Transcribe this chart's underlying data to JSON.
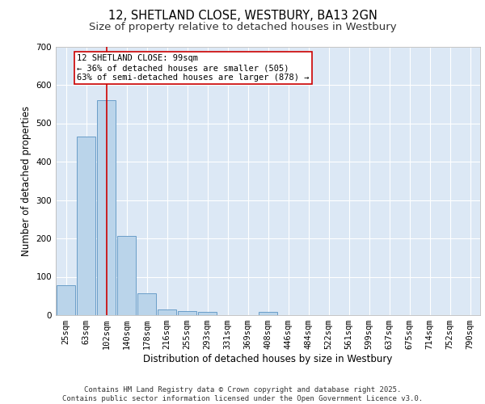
{
  "title": "12, SHETLAND CLOSE, WESTBURY, BA13 2GN",
  "subtitle": "Size of property relative to detached houses in Westbury",
  "xlabel": "Distribution of detached houses by size in Westbury",
  "ylabel": "Number of detached properties",
  "categories": [
    "25sqm",
    "63sqm",
    "102sqm",
    "140sqm",
    "178sqm",
    "216sqm",
    "255sqm",
    "293sqm",
    "331sqm",
    "369sqm",
    "408sqm",
    "446sqm",
    "484sqm",
    "522sqm",
    "561sqm",
    "599sqm",
    "637sqm",
    "675sqm",
    "714sqm",
    "752sqm",
    "790sqm"
  ],
  "values": [
    78,
    465,
    560,
    207,
    57,
    14,
    10,
    9,
    0,
    0,
    8,
    0,
    0,
    0,
    0,
    0,
    0,
    0,
    0,
    0,
    0
  ],
  "bar_color": "#bad4ea",
  "bar_edge_color": "#6a9ec8",
  "vline_x": 2,
  "vline_color": "#cc0000",
  "annotation_text": "12 SHETLAND CLOSE: 99sqm\n← 36% of detached houses are smaller (505)\n63% of semi-detached houses are larger (878) →",
  "annotation_box_color": "#ffffff",
  "annotation_box_edge": "#cc0000",
  "ylim": [
    0,
    700
  ],
  "yticks": [
    0,
    100,
    200,
    300,
    400,
    500,
    600,
    700
  ],
  "background_color": "#dce8f5",
  "grid_color": "#ffffff",
  "footer_text": "Contains HM Land Registry data © Crown copyright and database right 2025.\nContains public sector information licensed under the Open Government Licence v3.0.",
  "title_fontsize": 10.5,
  "subtitle_fontsize": 9.5,
  "axis_label_fontsize": 8.5,
  "tick_fontsize": 7.5,
  "annotation_fontsize": 7.5,
  "footer_fontsize": 6.5
}
